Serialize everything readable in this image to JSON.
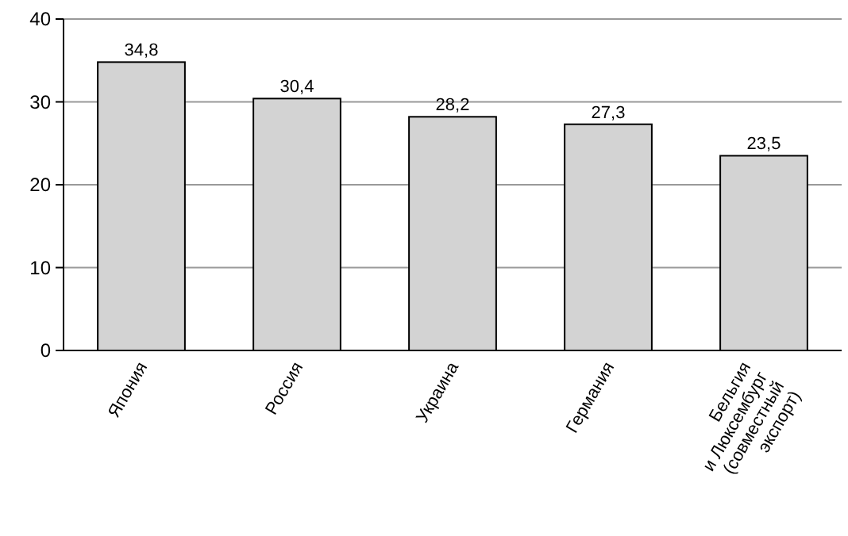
{
  "chart_data": {
    "type": "bar",
    "categories": [
      "Япония",
      "Россия",
      "Украина",
      "Германия",
      "Бельгия\nи Люксембург\n(совместный\nэкспорт)"
    ],
    "values": [
      34.8,
      30.4,
      28.2,
      27.3,
      23.5
    ],
    "color": "#d3d3d3",
    "ylim": [
      0,
      40
    ],
    "yticks": [
      0,
      10,
      20,
      30,
      40
    ],
    "value_labels": [
      "34,8",
      "30,4",
      "28,2",
      "27,3",
      "23,5"
    ],
    "grid": "y"
  }
}
